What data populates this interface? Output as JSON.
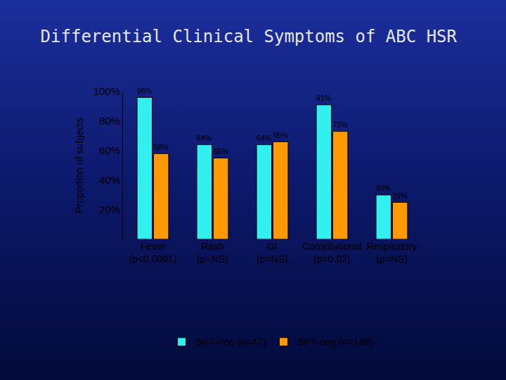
{
  "chart_data": {
    "type": "bar",
    "title": "Differential Clinical Symptoms of ABC HSR",
    "y_label": "Proportion of subjects",
    "categories": [
      "Fever",
      "Rash",
      "GI",
      "Constitutional",
      "Respiratory"
    ],
    "p_values": [
      "(p<0.0001)",
      "(p=NS)",
      "(p=NS)",
      "(p=0.02)",
      "(p=NS)"
    ],
    "series": [
      {
        "name": "SPT-Pos (n=47)",
        "color": "#33f0f0",
        "values": [
          96,
          64,
          64,
          91,
          30
        ],
        "value_labels": [
          "96%",
          "64%",
          "64%",
          "91%",
          "30%"
        ]
      },
      {
        "name": "SPT-neg (n=148)",
        "color": "#ff9900",
        "values": [
          58,
          55,
          66,
          73,
          25
        ],
        "value_labels": [
          "58%",
          "55%",
          "66%",
          "73%",
          "25%"
        ]
      }
    ],
    "ylim": [
      0,
      100
    ],
    "yticks": [
      {
        "value": 20,
        "label": "20%"
      },
      {
        "value": 40,
        "label": "40%"
      },
      {
        "value": 60,
        "label": "60%"
      },
      {
        "value": 80,
        "label": "80%"
      },
      {
        "value": 100,
        "label": "100%"
      }
    ],
    "grid": false,
    "data_labels": true,
    "legend": "bottom"
  }
}
